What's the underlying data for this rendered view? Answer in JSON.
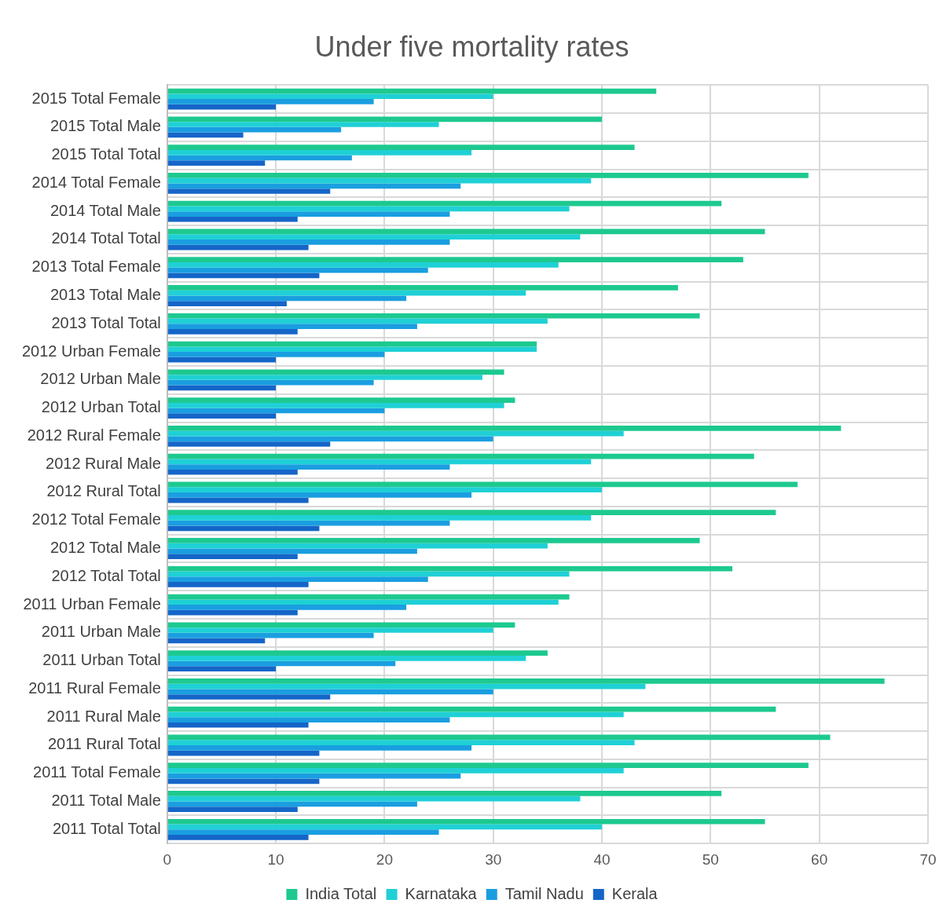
{
  "chart_data": {
    "type": "bar",
    "orientation": "horizontal",
    "title": "Under five mortality rates",
    "categories": [
      "2015 Total Female",
      "2015 Total Male",
      "2015 Total Total",
      "2014 Total Female",
      "2014 Total Male",
      "2014 Total Total",
      "2013 Total Female",
      "2013 Total Male",
      "2013 Total Total",
      "2012 Urban Female",
      "2012 Urban Male",
      "2012 Urban Total",
      "2012 Rural Female",
      "2012 Rural Male",
      "2012 Rural Total",
      "2012 Total Female",
      "2012 Total Male",
      "2012 Total Total",
      "2011 Urban Female",
      "2011 Urban Male",
      "2011 Urban Total",
      "2011 Rural Female",
      "2011 Rural Male",
      "2011 Rural Total",
      "2011 Total Female",
      "2011 Total Male",
      "2011 Total Total"
    ],
    "series": [
      {
        "name": "India Total",
        "color": "#1dc98f",
        "values": [
          45,
          40,
          43,
          59,
          51,
          55,
          53,
          47,
          49,
          34,
          31,
          32,
          62,
          54,
          58,
          56,
          49,
          52,
          37,
          32,
          35,
          66,
          56,
          61,
          59,
          51,
          55
        ]
      },
      {
        "name": "Karnataka",
        "color": "#1fd0d6",
        "values": [
          30,
          25,
          28,
          39,
          37,
          38,
          36,
          33,
          35,
          34,
          29,
          31,
          42,
          39,
          40,
          39,
          35,
          37,
          36,
          30,
          33,
          44,
          42,
          43,
          42,
          38,
          40
        ]
      },
      {
        "name": "Tamil Nadu",
        "color": "#1a9ee0",
        "values": [
          19,
          16,
          17,
          27,
          26,
          26,
          24,
          22,
          23,
          20,
          19,
          20,
          30,
          26,
          28,
          26,
          23,
          24,
          22,
          19,
          21,
          30,
          26,
          28,
          27,
          23,
          25
        ]
      },
      {
        "name": "Kerala",
        "color": "#1565c8",
        "values": [
          10,
          7,
          9,
          15,
          12,
          13,
          14,
          11,
          12,
          10,
          10,
          10,
          15,
          12,
          13,
          14,
          12,
          13,
          12,
          9,
          10,
          15,
          13,
          14,
          14,
          12,
          13
        ]
      }
    ],
    "xlim": [
      0,
      70
    ],
    "xticks": [
      0,
      10,
      20,
      30,
      40,
      50,
      60,
      70
    ],
    "grid": true,
    "legend": "bottom"
  }
}
